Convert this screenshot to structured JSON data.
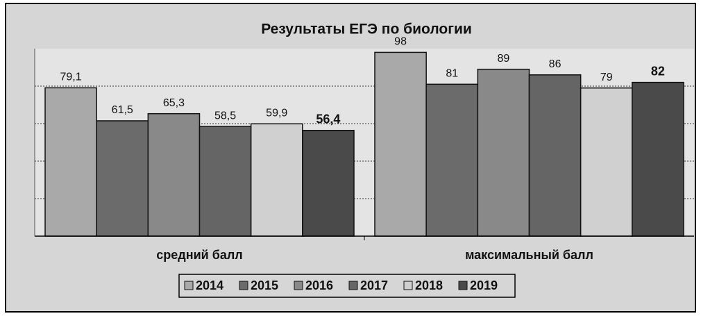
{
  "chart_data": {
    "type": "bar",
    "title": "Результаты ЕГЭ по биологии",
    "categories": [
      "средний балл",
      "максимальный балл"
    ],
    "series": [
      {
        "name": "2014",
        "color": "#a9a9a9",
        "values": [
          79.1,
          98
        ],
        "value_labels": [
          "79,1",
          "98"
        ]
      },
      {
        "name": "2015",
        "color": "#6b6b6b",
        "values": [
          61.5,
          81
        ],
        "value_labels": [
          "61,5",
          "81"
        ]
      },
      {
        "name": "2016",
        "color": "#898989",
        "values": [
          65.3,
          89
        ],
        "value_labels": [
          "65,3",
          "89"
        ]
      },
      {
        "name": "2017",
        "color": "#656565",
        "values": [
          58.5,
          86
        ],
        "value_labels": [
          "58,5",
          "86"
        ]
      },
      {
        "name": "2018",
        "color": "#d0d0d0",
        "values": [
          59.9,
          79
        ],
        "value_labels": [
          "59,9",
          "79"
        ]
      },
      {
        "name": "2019",
        "color": "#4a4a4a",
        "values": [
          56.4,
          82
        ],
        "value_labels": [
          "56,4",
          "82"
        ],
        "bold_labels": true
      }
    ],
    "ylim": [
      0,
      100
    ],
    "yticks": [
      20,
      40,
      60,
      80
    ],
    "grid": true,
    "legend": "bottom"
  }
}
